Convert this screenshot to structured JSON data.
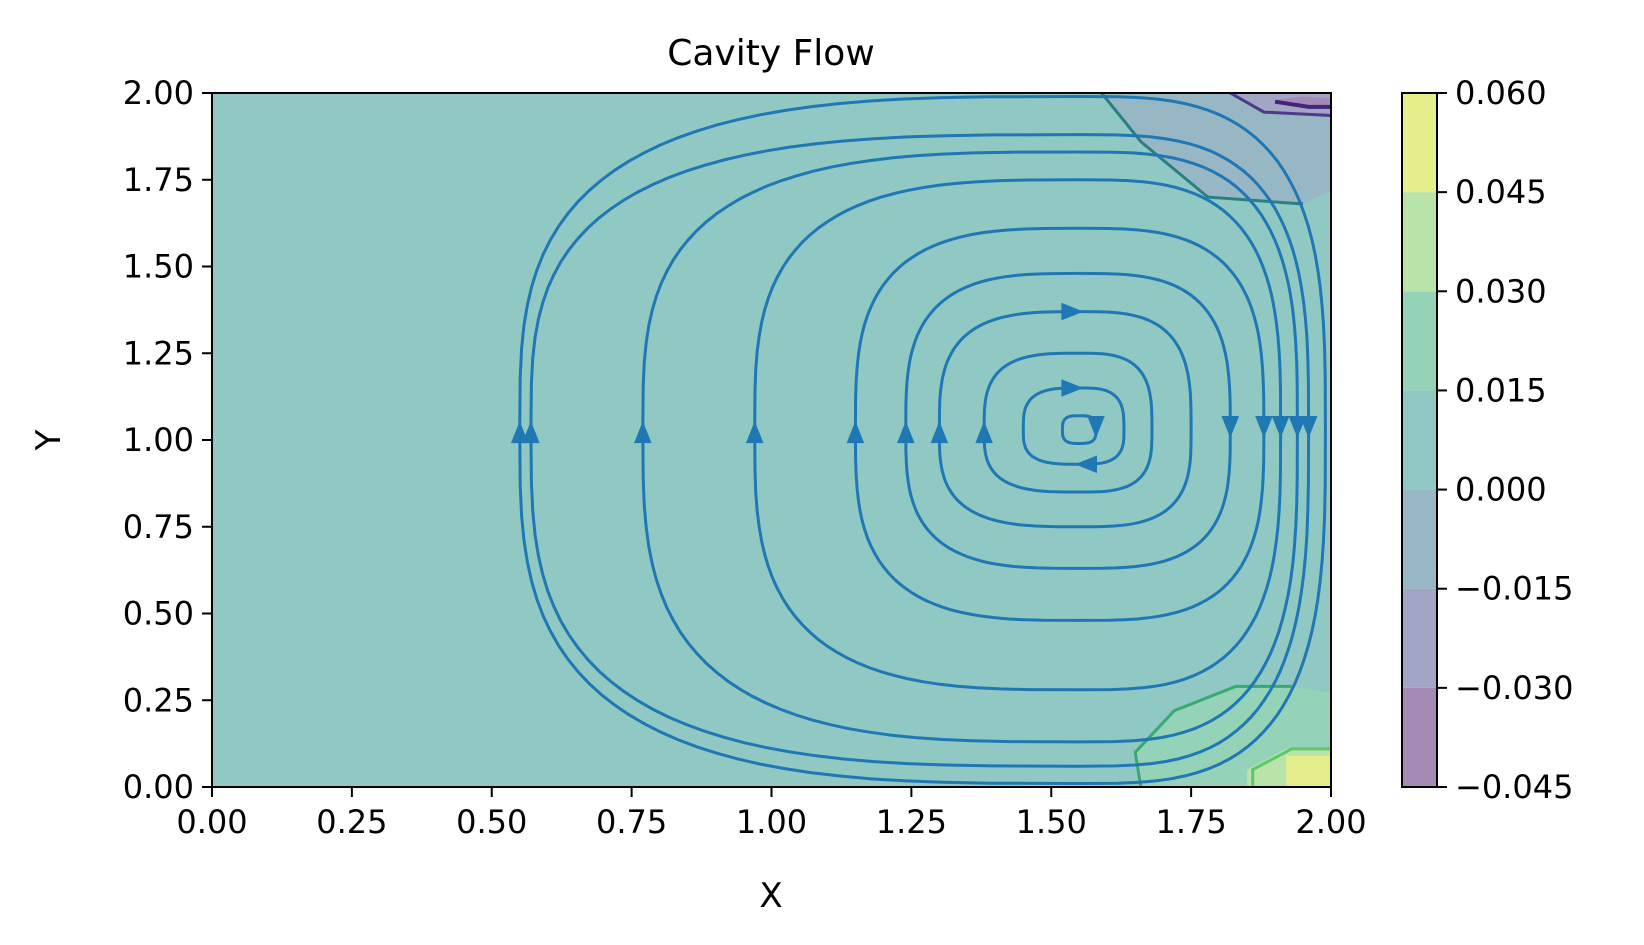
{
  "chart_data": {
    "type": "contour",
    "title": "Cavity Flow",
    "xlabel": "X",
    "ylabel": "Y",
    "xlim": [
      0,
      2
    ],
    "ylim": [
      0,
      2
    ],
    "x_ticks": [
      "0.00",
      "0.25",
      "0.50",
      "0.75",
      "1.00",
      "1.25",
      "1.50",
      "1.75",
      "2.00"
    ],
    "y_ticks": [
      "0.00",
      "0.25",
      "0.50",
      "0.75",
      "1.00",
      "1.25",
      "1.50",
      "1.75",
      "2.00"
    ],
    "x_tick_values": [
      0,
      0.25,
      0.5,
      0.75,
      1.0,
      1.25,
      1.5,
      1.75,
      2.0
    ],
    "y_tick_values": [
      0,
      0.25,
      0.5,
      0.75,
      1.0,
      1.25,
      1.5,
      1.75,
      2.0
    ],
    "colorbar": {
      "ticks": [
        "0.060",
        "0.045",
        "0.030",
        "0.015",
        "0.000",
        "−0.015",
        "−0.030",
        "−0.045"
      ],
      "levels": [
        -0.045,
        -0.03,
        -0.015,
        0.0,
        0.015,
        0.03,
        0.045,
        0.06
      ],
      "band_colors": [
        "#a48bb4",
        "#a2a5c4",
        "#98b7c5",
        "#90c8c4",
        "#95d3b8",
        "#b8e3a9",
        "#e6ed8b"
      ]
    },
    "background_color": "#90c8c4",
    "contour_regions": [
      {
        "level": -0.015,
        "color": "#98b7c5",
        "points": [
          [
            1.59,
            2.0
          ],
          [
            1.66,
            1.86
          ],
          [
            1.78,
            1.7
          ],
          [
            1.95,
            1.68
          ],
          [
            2.0,
            1.72
          ],
          [
            2.0,
            2.0
          ]
        ]
      },
      {
        "level": -0.03,
        "color": "#a2a5c4",
        "points": [
          [
            1.82,
            2.0
          ],
          [
            1.88,
            1.94
          ],
          [
            2.0,
            1.93
          ],
          [
            2.0,
            2.0
          ]
        ]
      },
      {
        "level": -0.045,
        "color": "#a48bb4",
        "points": [
          [
            1.9,
            1.98
          ],
          [
            1.96,
            1.955
          ],
          [
            2.0,
            1.955
          ],
          [
            2.0,
            1.985
          ],
          [
            1.95,
            1.99
          ]
        ]
      },
      {
        "level": 0.015,
        "color": "#95d3b8",
        "points": [
          [
            1.66,
            0.0
          ],
          [
            1.65,
            0.1
          ],
          [
            1.72,
            0.22
          ],
          [
            1.83,
            0.29
          ],
          [
            1.93,
            0.29
          ],
          [
            2.0,
            0.27
          ],
          [
            2.0,
            0.0
          ]
        ]
      },
      {
        "level": 0.03,
        "color": "#b8e3a9",
        "points": [
          [
            1.85,
            0.0
          ],
          [
            1.85,
            0.05
          ],
          [
            1.92,
            0.11
          ],
          [
            2.0,
            0.11
          ],
          [
            2.0,
            0.0
          ]
        ]
      },
      {
        "level": 0.045,
        "color": "#e6ed8b",
        "points": [
          [
            1.92,
            0.0
          ],
          [
            1.92,
            0.09
          ],
          [
            2.0,
            0.09
          ],
          [
            2.0,
            0.0
          ]
        ]
      }
    ],
    "streamline_color": "#1f77b4",
    "vortex_center": [
      1.55,
      1.03
    ]
  }
}
